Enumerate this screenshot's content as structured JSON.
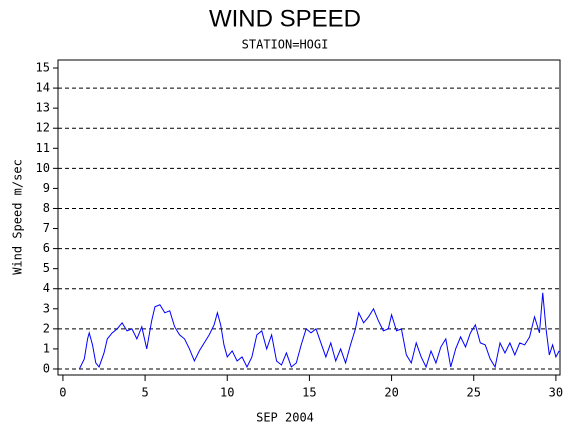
{
  "chart_data": {
    "type": "line",
    "title": "WIND SPEED",
    "subtitle": "STATION=HOGI",
    "x_label": "SEP 2004",
    "y_label": "Wind Speed m/sec",
    "xlim": [
      -0.3,
      30.25
    ],
    "xticks": [
      0,
      5,
      10,
      15,
      20,
      25,
      30
    ],
    "ylim": [
      -0.3,
      15.4
    ],
    "yticks": [
      0,
      1,
      2,
      3,
      4,
      5,
      6,
      7,
      8,
      9,
      10,
      11,
      12,
      13,
      14,
      15
    ],
    "y_gridlines": [
      0,
      2,
      4,
      6,
      8,
      10,
      12,
      14
    ],
    "grid": true,
    "series": [
      {
        "color": "#0000ff",
        "x": [
          1.0,
          1.3,
          1.5,
          1.6,
          1.8,
          2.0,
          2.2,
          2.5,
          2.7,
          3.0,
          3.3,
          3.6,
          3.9,
          4.2,
          4.5,
          4.8,
          5.1,
          5.4,
          5.6,
          5.9,
          6.2,
          6.5,
          6.8,
          7.1,
          7.4,
          7.7,
          8.0,
          8.3,
          8.6,
          8.9,
          9.2,
          9.4,
          9.6,
          9.8,
          10.0,
          10.3,
          10.6,
          10.9,
          11.2,
          11.5,
          11.8,
          12.1,
          12.4,
          12.7,
          13.0,
          13.3,
          13.6,
          13.9,
          14.2,
          14.5,
          14.8,
          15.1,
          15.4,
          15.7,
          16.0,
          16.3,
          16.6,
          16.9,
          17.2,
          17.5,
          17.8,
          18.0,
          18.3,
          18.6,
          18.9,
          19.2,
          19.5,
          19.8,
          20.0,
          20.3,
          20.6,
          20.9,
          21.2,
          21.5,
          21.8,
          22.1,
          22.4,
          22.7,
          23.0,
          23.3,
          23.6,
          23.9,
          24.2,
          24.5,
          24.8,
          25.1,
          25.4,
          25.7,
          26.0,
          26.3,
          26.6,
          26.9,
          27.2,
          27.5,
          27.8,
          28.1,
          28.4,
          28.7,
          29.0,
          29.2,
          29.4,
          29.6,
          29.8,
          30.0,
          30.2
        ],
        "values": [
          0,
          0.5,
          1.5,
          1.8,
          1.2,
          0.3,
          0.1,
          0.8,
          1.5,
          1.8,
          2.0,
          2.3,
          1.9,
          2.0,
          1.5,
          2.1,
          1.0,
          2.4,
          3.1,
          3.2,
          2.8,
          2.9,
          2.1,
          1.7,
          1.5,
          1.0,
          0.4,
          0.9,
          1.3,
          1.7,
          2.2,
          2.8,
          2.2,
          1.2,
          0.6,
          0.9,
          0.4,
          0.6,
          0.1,
          0.6,
          1.7,
          1.9,
          1.0,
          1.7,
          0.4,
          0.2,
          0.8,
          0.1,
          0.3,
          1.2,
          2.0,
          1.8,
          2.0,
          1.3,
          0.6,
          1.3,
          0.4,
          1.0,
          0.3,
          1.2,
          2.0,
          2.8,
          2.3,
          2.6,
          3.0,
          2.4,
          1.9,
          2.0,
          2.7,
          1.9,
          2.0,
          0.7,
          0.3,
          1.3,
          0.6,
          0.1,
          0.9,
          0.3,
          1.1,
          1.5,
          0.1,
          1.0,
          1.6,
          1.1,
          1.8,
          2.2,
          1.3,
          1.2,
          0.5,
          0.1,
          1.3,
          0.8,
          1.3,
          0.7,
          1.3,
          1.2,
          1.6,
          2.6,
          1.8,
          3.8,
          2.0,
          0.7,
          1.2,
          0.6,
          0.9
        ]
      }
    ]
  }
}
